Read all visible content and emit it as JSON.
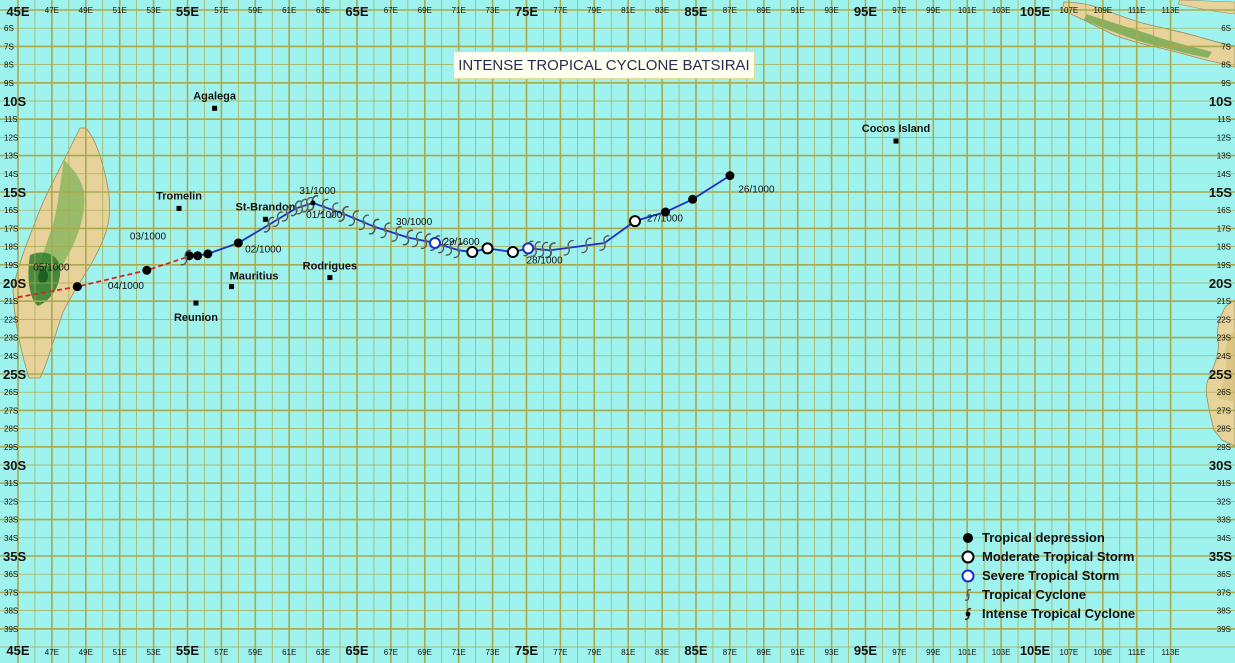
{
  "title": "INTENSE TROPICAL CYCLONE BATSIRAI",
  "colors": {
    "ocean": "#9FF3EF",
    "grid": "#A9A94E",
    "land_tan": "#E9D59A",
    "land_green": "#3F8F3A",
    "track_blue": "#1E2FC8",
    "track_red": "#D7261E",
    "severe_ring": "#1E2FC8"
  },
  "lon_major_labels": [
    "45E",
    "55E",
    "65E",
    "75E",
    "85E",
    "95E",
    "105E"
  ],
  "lon_minor_labels": [
    "47E",
    "49E",
    "51E",
    "53E",
    "57E",
    "59E",
    "61E",
    "63E",
    "67E",
    "69E",
    "71E",
    "73E",
    "77E",
    "79E",
    "81E",
    "83E",
    "87E",
    "89E",
    "91E",
    "93E",
    "97E",
    "99E",
    "101E",
    "103E",
    "107E",
    "109E",
    "111E",
    "113E"
  ],
  "lat_major_labels": [
    "10S",
    "15S",
    "20S",
    "25S",
    "30S",
    "35S"
  ],
  "lat_minor_labels": [
    "6S",
    "7S",
    "8S",
    "9S",
    "11S",
    "12S",
    "13S",
    "14S",
    "16S",
    "17S",
    "18S",
    "19S",
    "21S",
    "22S",
    "23S",
    "24S",
    "26S",
    "27S",
    "28S",
    "29S",
    "31S",
    "32S",
    "33S",
    "34S",
    "36S",
    "37S",
    "38S",
    "39S"
  ],
  "places": [
    {
      "name": "Agalega",
      "lon": 56.6,
      "lat": -10.4
    },
    {
      "name": "Tromelin",
      "lon": 54.5,
      "lat": -15.9
    },
    {
      "name": "St-Brandon",
      "lon": 59.6,
      "lat": -16.5
    },
    {
      "name": "Mauritius",
      "lon": 57.6,
      "lat": -20.2
    },
    {
      "name": "Reunion",
      "lon": 55.5,
      "lat": -21.1
    },
    {
      "name": "Rodrigues",
      "lon": 63.4,
      "lat": -19.7
    },
    {
      "name": "Cocos Island",
      "lon": 96.8,
      "lat": -12.2
    }
  ],
  "track": {
    "points": [
      {
        "lon": 87.0,
        "lat": -14.1,
        "stage": "depression"
      },
      {
        "lon": 84.8,
        "lat": -15.4,
        "stage": "depression"
      },
      {
        "lon": 83.2,
        "lat": -16.1,
        "stage": "depression"
      },
      {
        "lon": 81.4,
        "lat": -16.6,
        "stage": "moderate"
      },
      {
        "lon": 79.6,
        "lat": -17.8,
        "stage": "cyclone"
      },
      {
        "lon": 76.4,
        "lat": -18.2,
        "stage": "cyclone"
      },
      {
        "lon": 75.1,
        "lat": -18.1,
        "stage": "severe"
      },
      {
        "lon": 74.2,
        "lat": -18.3,
        "stage": "moderate"
      },
      {
        "lon": 72.7,
        "lat": -18.1,
        "stage": "moderate"
      },
      {
        "lon": 71.8,
        "lat": -18.3,
        "stage": "moderate"
      },
      {
        "lon": 71.0,
        "lat": -18.2,
        "stage": "cyclone"
      },
      {
        "lon": 69.6,
        "lat": -17.8,
        "stage": "severe"
      },
      {
        "lon": 68.0,
        "lat": -17.5,
        "stage": "cyclone"
      },
      {
        "lon": 66.0,
        "lat": -16.9,
        "stage": "cyclone"
      },
      {
        "lon": 64.2,
        "lat": -16.2,
        "stage": "cyclone"
      },
      {
        "lon": 62.4,
        "lat": -15.6,
        "stage": "intense"
      },
      {
        "lon": 61.4,
        "lat": -15.9,
        "stage": "cyclone"
      },
      {
        "lon": 59.8,
        "lat": -16.8,
        "stage": "cyclone"
      },
      {
        "lon": 58.0,
        "lat": -17.8,
        "stage": "depression"
      },
      {
        "lon": 56.2,
        "lat": -18.4,
        "stage": "depression"
      },
      {
        "lon": 55.6,
        "lat": -18.5,
        "stage": "depression"
      },
      {
        "lon": 55.1,
        "lat": -18.5,
        "stage": "depression"
      },
      {
        "lon": 54.9,
        "lat": -18.6,
        "stage": "cyclone"
      }
    ],
    "extratrack": [
      {
        "lon": 54.9,
        "lat": -18.6
      },
      {
        "lon": 52.6,
        "lat": -19.3,
        "stage": "depression"
      },
      {
        "lon": 48.5,
        "lat": -20.2,
        "stage": "depression"
      },
      {
        "lon": 44.9,
        "lat": -20.8
      }
    ]
  },
  "date_labels": [
    {
      "text": "26/1000",
      "lon": 87.5,
      "lat": -14.8
    },
    {
      "text": "27/1000",
      "lon": 82.1,
      "lat": -16.4
    },
    {
      "text": "28/1000",
      "lon": 75.0,
      "lat": -18.7
    },
    {
      "text": "29/1600",
      "lon": 70.1,
      "lat": -17.7
    },
    {
      "text": "30/1000",
      "lon": 67.3,
      "lat": -16.6
    },
    {
      "text": "31/1000",
      "lon": 61.6,
      "lat": -14.9
    },
    {
      "text": "01/1000",
      "lon": 62.0,
      "lat": -16.2
    },
    {
      "text": "02/1000",
      "lon": 58.4,
      "lat": -18.1
    },
    {
      "text": "03/1000",
      "lon": 51.6,
      "lat": -17.4
    },
    {
      "text": "04/1000",
      "lon": 50.3,
      "lat": -20.1
    },
    {
      "text": "05/1000",
      "lon": 45.9,
      "lat": -19.1
    }
  ],
  "legend": [
    {
      "stage": "depression",
      "label": "Tropical depression"
    },
    {
      "stage": "moderate",
      "label": "Moderate Tropical Storm"
    },
    {
      "stage": "severe",
      "label": "Severe Tropical Storm"
    },
    {
      "stage": "cyclone",
      "label": "Tropical Cyclone"
    },
    {
      "stage": "intense",
      "label": "Intense Tropical Cyclone"
    }
  ]
}
